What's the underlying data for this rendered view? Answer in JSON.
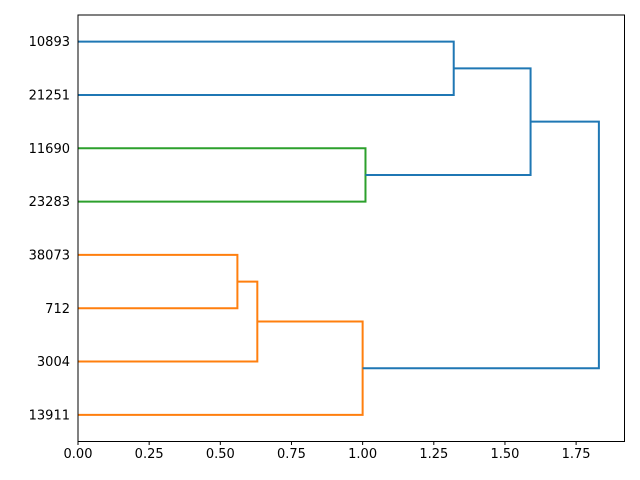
{
  "figure": {
    "background": "#ffffff",
    "axis_color": "#000000"
  },
  "chart_data": {
    "type": "dendrogram",
    "orientation": "right",
    "title": "",
    "xlabel": "",
    "ylabel": "",
    "grid": false,
    "legend": null,
    "leaves": [
      "10893",
      "21251",
      "11690",
      "23283",
      "38073",
      "712",
      "3004",
      "13911"
    ],
    "links": [
      {
        "children": [
          "38073",
          "712"
        ],
        "height": 0.56,
        "color_key": "C1"
      },
      {
        "children": [
          "#0",
          "3004"
        ],
        "height": 0.63,
        "color_key": "C1"
      },
      {
        "children": [
          "#1",
          "13911"
        ],
        "height": 1.0,
        "color_key": "C1"
      },
      {
        "children": [
          "11690",
          "23283"
        ],
        "height": 1.01,
        "color_key": "C2"
      },
      {
        "children": [
          "10893",
          "21251"
        ],
        "height": 1.32,
        "color_key": "C0"
      },
      {
        "children": [
          "#4",
          "#3"
        ],
        "height": 1.59,
        "color_key": "C0"
      },
      {
        "children": [
          "#5",
          "#2"
        ],
        "height": 1.83,
        "color_key": "C0"
      }
    ],
    "palette": {
      "C0": "#1f77b4",
      "C1": "#ff7f0e",
      "C2": "#2ca02c"
    },
    "x_ticks": [
      {
        "value": 0.0,
        "label": "0.00"
      },
      {
        "value": 0.25,
        "label": "0.25"
      },
      {
        "value": 0.5,
        "label": "0.50"
      },
      {
        "value": 0.75,
        "label": "0.75"
      },
      {
        "value": 1.0,
        "label": "1.00"
      },
      {
        "value": 1.25,
        "label": "1.25"
      },
      {
        "value": 1.5,
        "label": "1.50"
      },
      {
        "value": 1.75,
        "label": "1.75"
      }
    ],
    "xlim": [
      0,
      1.92
    ],
    "line_width": 2,
    "tick_font_px": 13,
    "leaf_font_px": 13
  }
}
